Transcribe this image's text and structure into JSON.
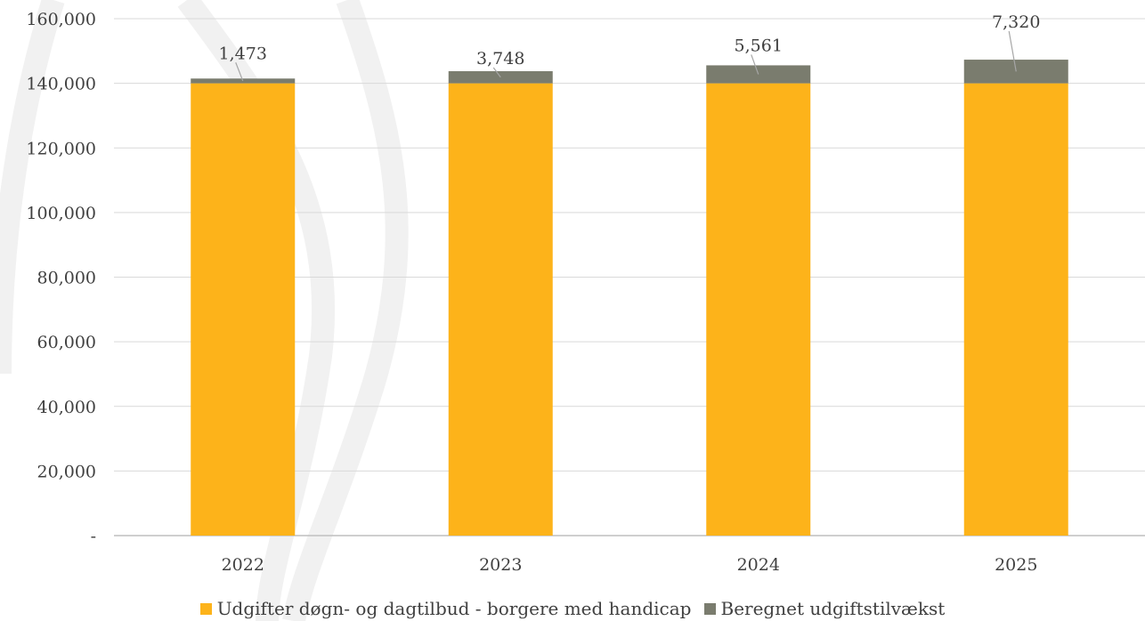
{
  "chart_data": {
    "type": "bar",
    "stacked": true,
    "categories": [
      "2022",
      "2023",
      "2024",
      "2025"
    ],
    "series": [
      {
        "name": "Udgifter døgn- og dagtilbud - borgere med handicap",
        "values": [
          140000,
          140000,
          140000,
          140000
        ],
        "color": "#FDB31A"
      },
      {
        "name": "Beregnet udgiftstilvækst",
        "values": [
          1473,
          3748,
          5561,
          7320
        ],
        "color": "#7A7C6E"
      }
    ],
    "data_labels": [
      "1,473",
      "3,748",
      "5,561",
      "7,320"
    ],
    "ylim": [
      0,
      160000
    ],
    "y_ticks": [
      0,
      20000,
      40000,
      60000,
      80000,
      100000,
      120000,
      140000,
      160000
    ],
    "y_tick_labels": [
      "-",
      "20,000",
      "40,000",
      "60,000",
      "80,000",
      "100,000",
      "120,000",
      "140,000",
      "160,000"
    ],
    "grid": true,
    "legend_position": "bottom",
    "title": "",
    "xlabel": "",
    "ylabel": ""
  }
}
